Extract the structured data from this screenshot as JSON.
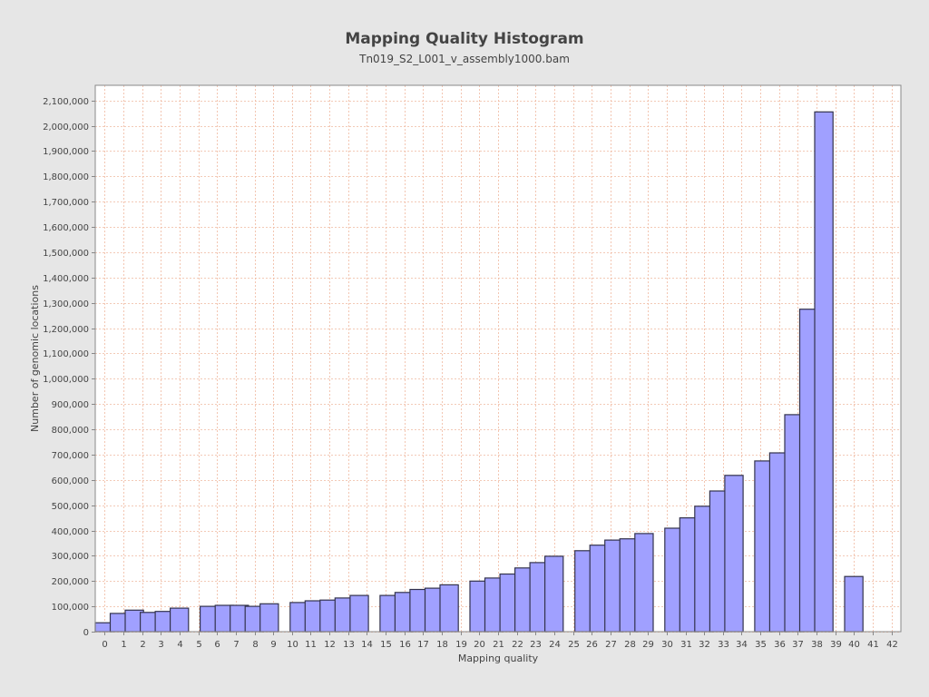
{
  "chart_data": {
    "type": "bar",
    "title": "Mapping Quality Histogram",
    "subtitle": "Tn019_S2_L001_v_assembly1000.bam",
    "xlabel": "Mapping quality",
    "ylabel": "Number of genomic locations",
    "ylim": [
      0,
      2160000
    ],
    "xlim": [
      -0.5,
      42.5
    ],
    "grid": true,
    "y_ticks": [
      0,
      100000,
      200000,
      300000,
      400000,
      500000,
      600000,
      700000,
      800000,
      900000,
      1000000,
      1100000,
      1200000,
      1300000,
      1400000,
      1500000,
      1600000,
      1700000,
      1800000,
      1900000,
      2000000,
      2100000
    ],
    "y_tick_labels": [
      "0",
      "100,000",
      "200,000",
      "300,000",
      "400,000",
      "500,000",
      "600,000",
      "700,000",
      "800,000",
      "900,000",
      "1,000,000",
      "1,100,000",
      "1,200,000",
      "1,300,000",
      "1,400,000",
      "1,500,000",
      "1,600,000",
      "1,700,000",
      "1,800,000",
      "1,900,000",
      "2,000,000",
      "2,100,000"
    ],
    "x_tick_labels": [
      "0",
      "1",
      "2",
      "3",
      "4",
      "5",
      "6",
      "7",
      "8",
      "9",
      "10",
      "11",
      "12",
      "13",
      "14",
      "15",
      "16",
      "17",
      "18",
      "19",
      "20",
      "21",
      "22",
      "23",
      "24",
      "25",
      "26",
      "27",
      "28",
      "29",
      "30",
      "31",
      "32",
      "33",
      "34",
      "35",
      "36",
      "37",
      "38",
      "39",
      "40",
      "41",
      "42"
    ],
    "bars": [
      {
        "x": 0,
        "y": 35000
      },
      {
        "x": 0.8,
        "y": 72000
      },
      {
        "x": 1.6,
        "y": 85000
      },
      {
        "x": 2.4,
        "y": 76000
      },
      {
        "x": 3.2,
        "y": 80000
      },
      {
        "x": 4.0,
        "y": 93000
      },
      {
        "x": 5.6,
        "y": 100000
      },
      {
        "x": 6.4,
        "y": 104000
      },
      {
        "x": 7.2,
        "y": 104000
      },
      {
        "x": 8.0,
        "y": 100000
      },
      {
        "x": 8.8,
        "y": 110000
      },
      {
        "x": 10.4,
        "y": 115000
      },
      {
        "x": 11.2,
        "y": 122000
      },
      {
        "x": 12.0,
        "y": 125000
      },
      {
        "x": 12.8,
        "y": 133000
      },
      {
        "x": 13.6,
        "y": 143000
      },
      {
        "x": 15.2,
        "y": 143000
      },
      {
        "x": 16.0,
        "y": 155000
      },
      {
        "x": 16.8,
        "y": 167000
      },
      {
        "x": 17.6,
        "y": 172000
      },
      {
        "x": 18.4,
        "y": 185000
      },
      {
        "x": 20.0,
        "y": 200000
      },
      {
        "x": 20.8,
        "y": 212000
      },
      {
        "x": 21.6,
        "y": 228000
      },
      {
        "x": 22.4,
        "y": 252000
      },
      {
        "x": 23.2,
        "y": 273000
      },
      {
        "x": 24.0,
        "y": 298000
      },
      {
        "x": 25.6,
        "y": 320000
      },
      {
        "x": 26.4,
        "y": 342000
      },
      {
        "x": 27.2,
        "y": 362000
      },
      {
        "x": 28.0,
        "y": 367000
      },
      {
        "x": 28.8,
        "y": 388000
      },
      {
        "x": 30.4,
        "y": 409000
      },
      {
        "x": 31.2,
        "y": 450000
      },
      {
        "x": 32.0,
        "y": 496000
      },
      {
        "x": 32.8,
        "y": 556000
      },
      {
        "x": 33.6,
        "y": 618000
      },
      {
        "x": 35.2,
        "y": 675000
      },
      {
        "x": 36.0,
        "y": 707000
      },
      {
        "x": 36.8,
        "y": 858000
      },
      {
        "x": 37.6,
        "y": 1275000
      },
      {
        "x": 38.4,
        "y": 2055000
      },
      {
        "x": 40.0,
        "y": 218000
      }
    ],
    "colors": {
      "background": "#e6e6e6",
      "plot_background": "#ffffff",
      "bar_fill": "#a0a0ff",
      "bar_stroke": "#33334d",
      "grid": "#f0b9a0",
      "axis": "#888888",
      "text": "#444444"
    }
  }
}
